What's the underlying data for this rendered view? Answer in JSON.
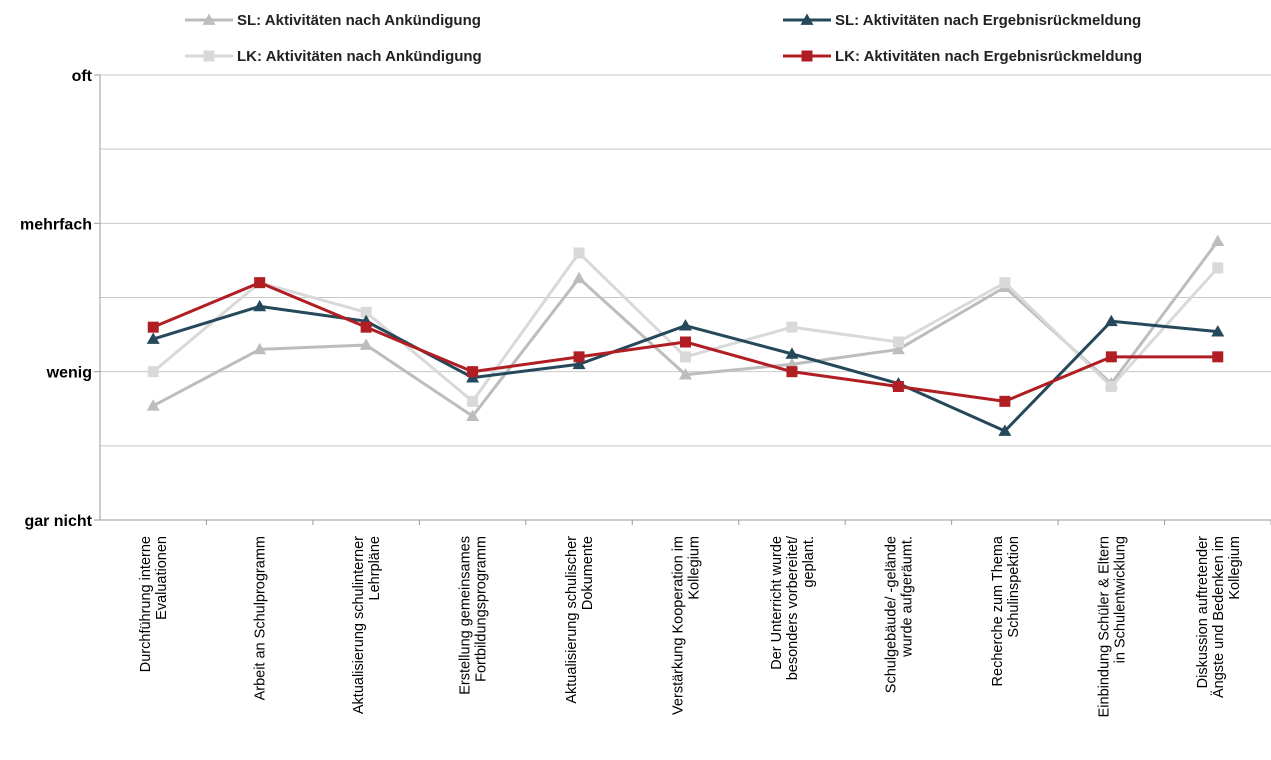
{
  "chart_data": {
    "type": "line",
    "title": "",
    "xlabel": "",
    "ylabel": "",
    "ylim": [
      0,
      3
    ],
    "grid": true,
    "legend_position": "top",
    "y_ticks": [
      {
        "value": 0,
        "label": "gar nicht"
      },
      {
        "value": 1,
        "label": "wenig"
      },
      {
        "value": 2,
        "label": "mehrfach"
      },
      {
        "value": 3,
        "label": "oft"
      }
    ],
    "categories": [
      [
        "Durchführung interne",
        "Evaluationen"
      ],
      [
        "Arbeit an Schulprogramm"
      ],
      [
        "Aktualisierung schulinterner",
        "Lehrpläne"
      ],
      [
        "Erstellung gemeinsames",
        "Fortbildungsprogramm"
      ],
      [
        "Aktualisierung schulischer",
        "Dokumente"
      ],
      [
        "Verstärkung Kooperation im",
        "Kollegium"
      ],
      [
        "Der Unterricht wurde",
        "besonders vorbereitet/",
        "geplant."
      ],
      [
        "Schulgebäude/ -gelände",
        "wurde aufgeräumt."
      ],
      [
        "Recherche zum Thema",
        "Schulinspektion"
      ],
      [
        "Einbindung Schüler & Eltern",
        "in Schulentwicklung"
      ],
      [
        "Diskussion auftretender",
        "Ängste und Bedenken im",
        "Kollegium"
      ]
    ],
    "series": [
      {
        "name": "SL: Aktivitäten nach Ankündigung",
        "color": "#bdbdbd",
        "marker": "triangle",
        "values": [
          0.77,
          1.15,
          1.18,
          0.7,
          1.63,
          0.98,
          1.05,
          1.15,
          1.57,
          0.92,
          1.88
        ]
      },
      {
        "name": "LK: Aktivitäten nach Ankündigung",
        "color": "#d9d9d9",
        "marker": "square",
        "values": [
          1.0,
          1.6,
          1.4,
          0.8,
          1.8,
          1.1,
          1.3,
          1.2,
          1.6,
          0.9,
          1.7
        ]
      },
      {
        "name": "SL: Aktivitäten nach Ergebnisrückmeldung",
        "color": "#25485a",
        "marker": "triangle",
        "values": [
          1.22,
          1.44,
          1.34,
          0.96,
          1.05,
          1.31,
          1.12,
          0.92,
          0.6,
          1.34,
          1.27
        ]
      },
      {
        "name": "LK: Aktivitäten nach Ergebnisrückmeldung",
        "color": "#b01e23",
        "marker": "square",
        "values": [
          1.3,
          1.6,
          1.3,
          1.0,
          1.1,
          1.2,
          1.0,
          0.9,
          0.8,
          1.1,
          1.1
        ]
      }
    ]
  }
}
